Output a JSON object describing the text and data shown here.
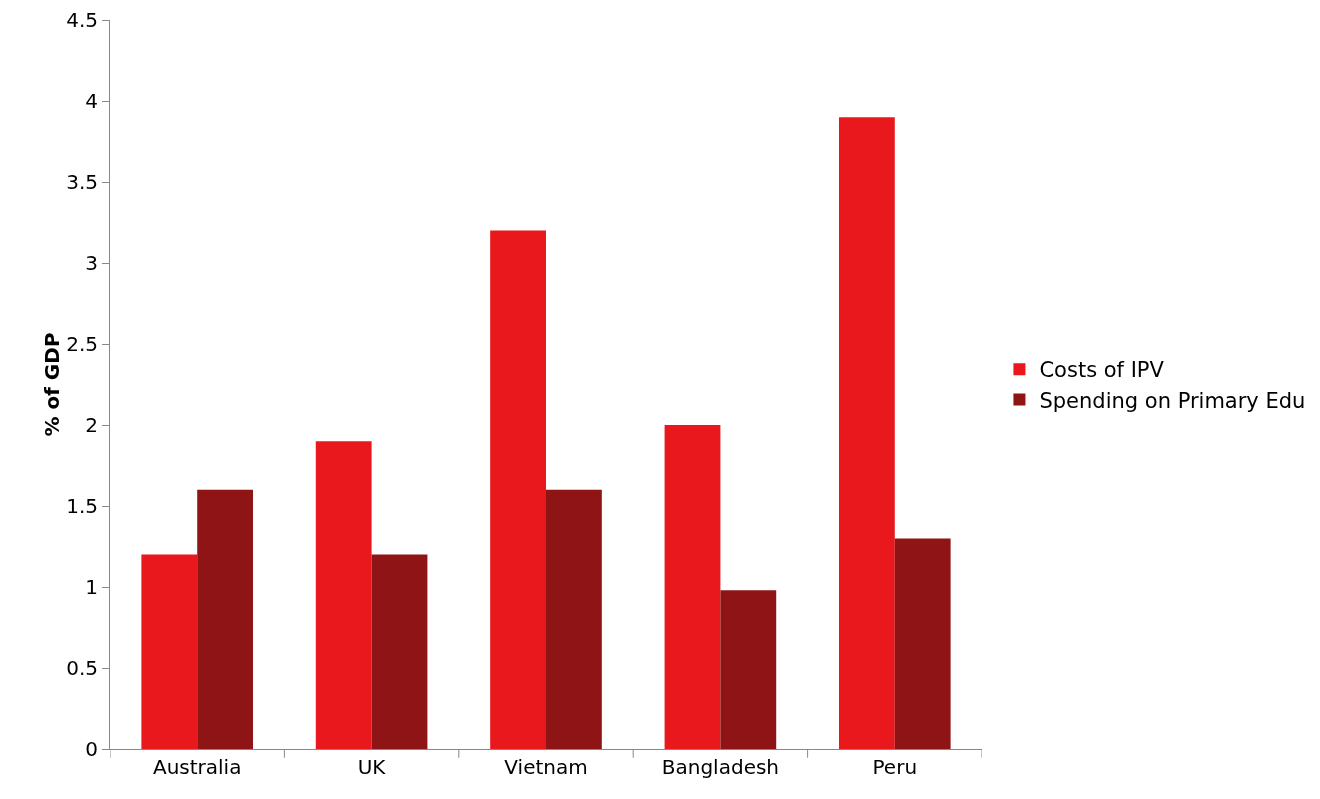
{
  "chart_data": {
    "type": "bar",
    "ylabel": "% of GDP",
    "categories": [
      "Australia",
      "UK",
      "Vietnam",
      "Bangladesh",
      "Peru"
    ],
    "series": [
      {
        "name": "Costs of IPV",
        "color": "#e8181c",
        "values": [
          1.2,
          1.9,
          3.2,
          2.0,
          3.9
        ]
      },
      {
        "name": "Spending on Primary Edu",
        "color": "#8e1416",
        "values": [
          1.6,
          1.2,
          1.6,
          0.98,
          1.3
        ]
      }
    ],
    "ylim": [
      0,
      4.5
    ],
    "yticks": [
      0,
      0.5,
      1,
      1.5,
      2,
      2.5,
      3,
      3.5,
      4,
      4.5
    ],
    "grid": false,
    "legend": "right"
  }
}
